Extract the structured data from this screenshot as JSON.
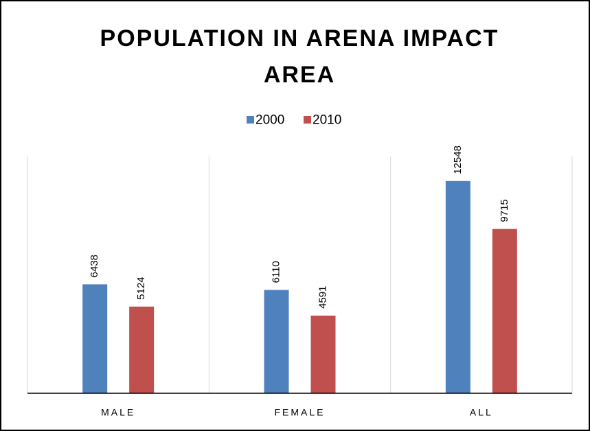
{
  "chart_data": {
    "type": "bar",
    "title": "POPULATION IN ARENA IMPACT AREA",
    "categories": [
      "MALE",
      "FEMALE",
      "ALL"
    ],
    "series": [
      {
        "name": "2000",
        "color": "#4f81bd",
        "values": [
          6438,
          6110,
          12548
        ]
      },
      {
        "name": "2010",
        "color": "#c0504d",
        "values": [
          5124,
          4591,
          9715
        ]
      }
    ],
    "ylim": [
      0,
      14000
    ],
    "legend": "top"
  }
}
